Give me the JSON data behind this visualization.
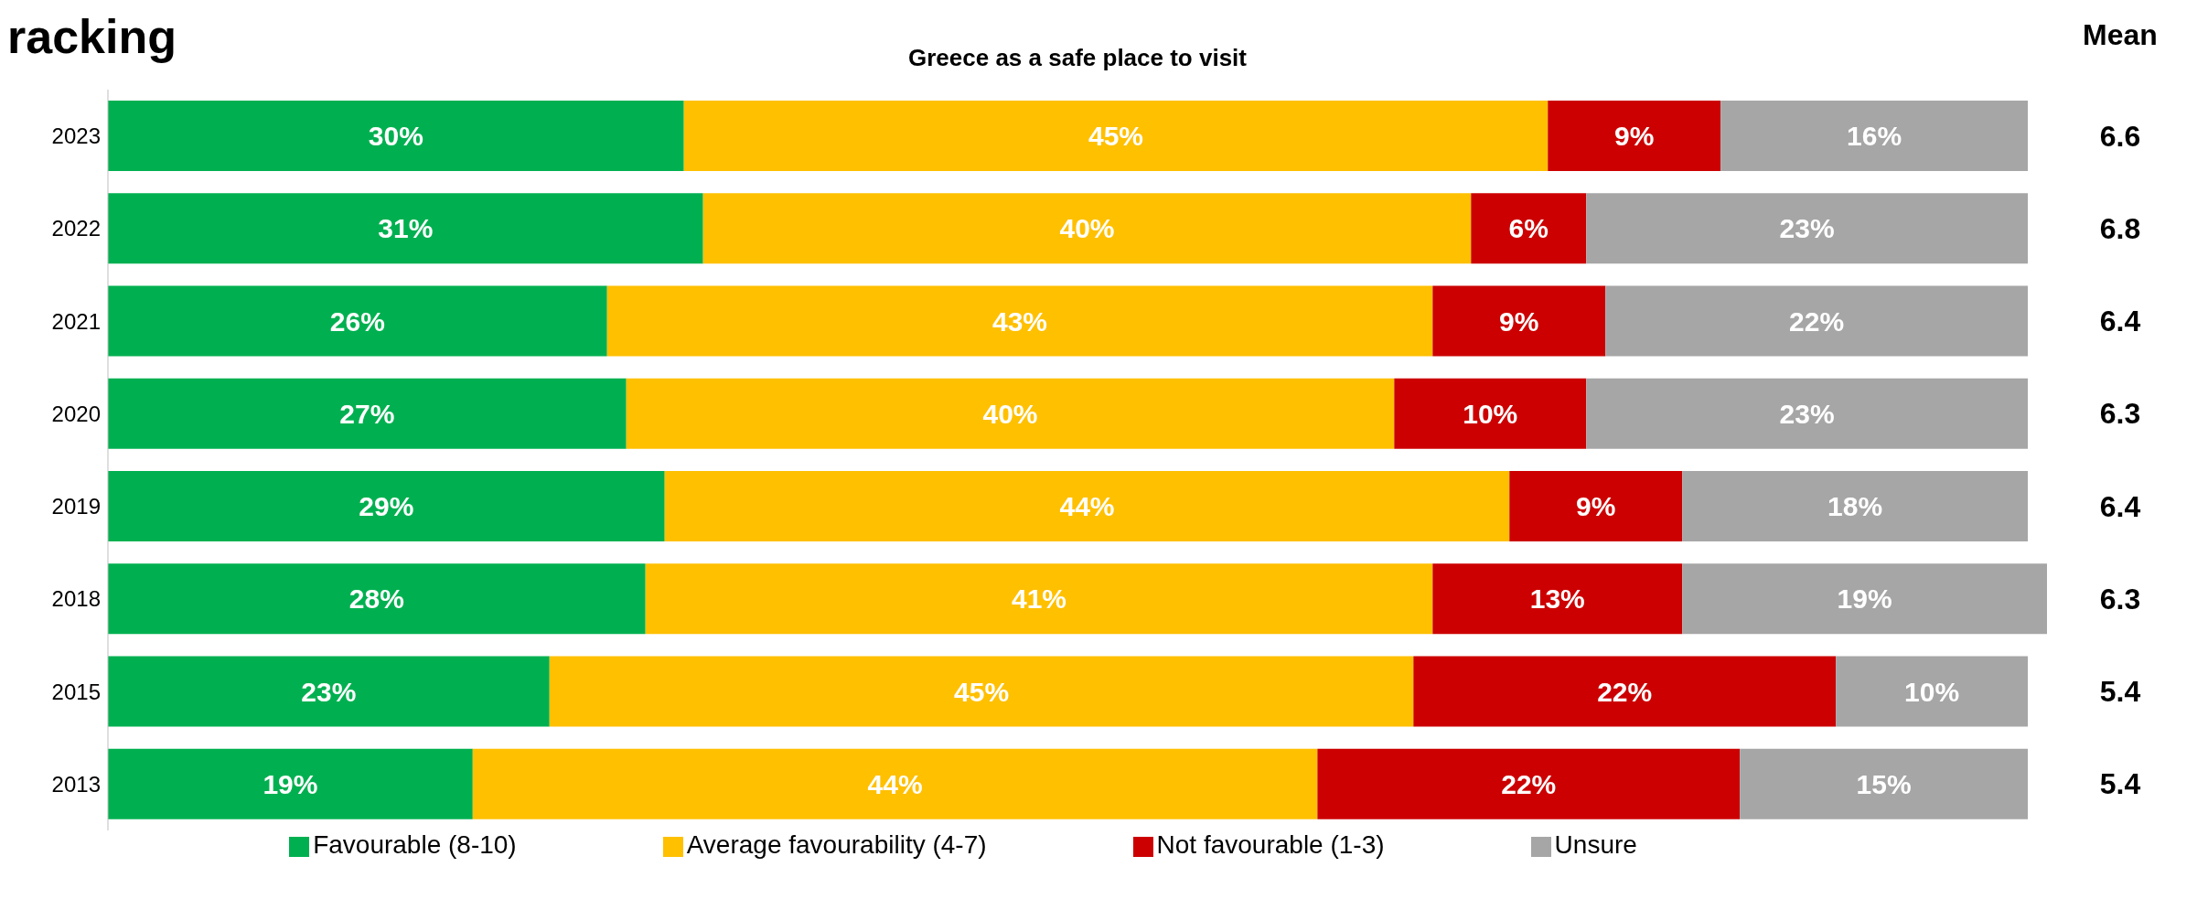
{
  "chart_data": {
    "type": "bar",
    "orientation": "horizontal",
    "stacked": true,
    "title": "racking",
    "subtitle": "Greece as a safe place to visit",
    "categories": [
      "2023",
      "2022",
      "2021",
      "2020",
      "2019",
      "2018",
      "2015",
      "2013"
    ],
    "series": [
      {
        "name": "Favourable (8-10)",
        "color": "#00b050",
        "values": [
          30,
          31,
          26,
          27,
          29,
          28,
          23,
          19
        ],
        "value_labels": [
          "30%",
          "31%",
          "26%",
          "27%",
          "29%",
          "28%",
          "23%",
          "19%"
        ]
      },
      {
        "name": "Average favourability (4-7)",
        "color": "#ffc000",
        "values": [
          45,
          40,
          43,
          40,
          44,
          41,
          45,
          44
        ],
        "value_labels": [
          "45%",
          "40%",
          "43%",
          "40%",
          "44%",
          "41%",
          "45%",
          "44%"
        ]
      },
      {
        "name": "Not favourable (1-3)",
        "color": "#cc0000",
        "values": [
          9,
          6,
          9,
          10,
          9,
          13,
          22,
          22
        ],
        "value_labels": [
          "9%",
          "6%",
          "9%",
          "10%",
          "9%",
          "13%",
          "22%",
          "22%"
        ]
      },
      {
        "name": "Unsure",
        "color": "#a6a6a6",
        "values": [
          16,
          23,
          22,
          23,
          18,
          19,
          10,
          15
        ],
        "value_labels": [
          "16%",
          "23%",
          "22%",
          "23%",
          "18%",
          "19%",
          "10%",
          "15%"
        ]
      }
    ],
    "annotations": [
      "Mean",
      "6.6",
      "6.8",
      "6.4",
      "6.3",
      "6.4",
      "6.3",
      "5.4",
      "5.4"
    ],
    "legend": "bottom"
  }
}
